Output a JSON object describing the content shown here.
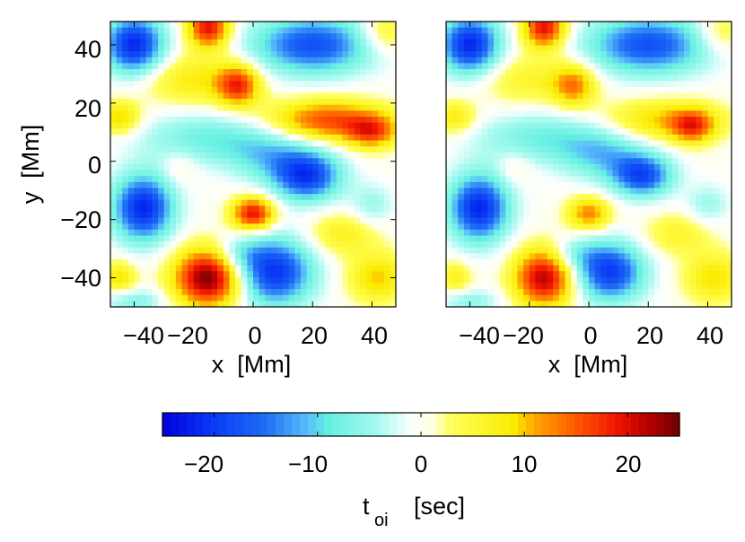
{
  "chart_data": {
    "type": "heatmap",
    "panels": [
      {
        "id": "left",
        "title": "",
        "xlabel": "x  [Mm]",
        "ylabel": "y  [Mm]",
        "xlim": [
          -48,
          48
        ],
        "ylim": [
          -50,
          48
        ],
        "xticks": [
          -40,
          -20,
          0,
          20,
          40
        ],
        "yticks": [
          40,
          20,
          0,
          -20,
          -40
        ],
        "xtick_labels": [
          "−40",
          "−20",
          "0",
          "20",
          "40"
        ],
        "ytick_labels": [
          "40",
          "20",
          "0",
          "−20",
          "−40"
        ],
        "blobs": [
          {
            "x": -40,
            "y": 40,
            "sx": 7,
            "sy": 7,
            "v": -22
          },
          {
            "x": -15,
            "y": 46,
            "sx": 5,
            "sy": 5,
            "v": 20
          },
          {
            "x": 20,
            "y": 40,
            "sx": 14,
            "sy": 7,
            "v": -18
          },
          {
            "x": 44,
            "y": 44,
            "sx": 6,
            "sy": 5,
            "v": 7
          },
          {
            "x": -20,
            "y": 28,
            "sx": 12,
            "sy": 6,
            "v": 8
          },
          {
            "x": -5,
            "y": 26,
            "sx": 5,
            "sy": 5,
            "v": 16
          },
          {
            "x": 25,
            "y": 14,
            "sx": 14,
            "sy": 5,
            "v": 16
          },
          {
            "x": 40,
            "y": 10,
            "sx": 6,
            "sy": 4,
            "v": 13
          },
          {
            "x": -45,
            "y": 15,
            "sx": 5,
            "sy": 4,
            "v": 10
          },
          {
            "x": -15,
            "y": 8,
            "sx": 16,
            "sy": 6,
            "v": -8
          },
          {
            "x": 5,
            "y": 2,
            "sx": 10,
            "sy": 6,
            "v": -8
          },
          {
            "x": -25,
            "y": -2,
            "sx": 4,
            "sy": 4,
            "v": 3
          },
          {
            "x": 18,
            "y": -5,
            "sx": 8,
            "sy": 6,
            "v": -20
          },
          {
            "x": -37,
            "y": -16,
            "sx": 7,
            "sy": 8,
            "v": -22
          },
          {
            "x": 0,
            "y": -18,
            "sx": 5,
            "sy": 4,
            "v": 20
          },
          {
            "x": 30,
            "y": -25,
            "sx": 8,
            "sy": 5,
            "v": 7
          },
          {
            "x": -15,
            "y": -40,
            "sx": 8,
            "sy": 7,
            "v": 25
          },
          {
            "x": 7,
            "y": -38,
            "sx": 9,
            "sy": 8,
            "v": -21
          },
          {
            "x": -45,
            "y": -40,
            "sx": 4,
            "sy": 4,
            "v": 9
          },
          {
            "x": -40,
            "y": -48,
            "sx": 7,
            "sy": 3,
            "v": -7
          },
          {
            "x": 42,
            "y": -40,
            "sx": 7,
            "sy": 6,
            "v": 10
          },
          {
            "x": -5,
            "y": -32,
            "sx": 6,
            "sy": 4,
            "v": -6
          },
          {
            "x": 40,
            "y": -15,
            "sx": 5,
            "sy": 5,
            "v": -5
          }
        ]
      },
      {
        "id": "right",
        "title": "",
        "xlabel": "x  [Mm]",
        "ylabel": "",
        "xlim": [
          -48,
          48
        ],
        "ylim": [
          -50,
          48
        ],
        "xticks": [
          -40,
          -20,
          0,
          20,
          40
        ],
        "yticks": [],
        "xtick_labels": [
          "−40",
          "−20",
          "0",
          "20",
          "40"
        ],
        "ytick_labels": [],
        "blobs": [
          {
            "x": -40,
            "y": 40,
            "sx": 7,
            "sy": 7,
            "v": -22
          },
          {
            "x": -15,
            "y": 46,
            "sx": 5,
            "sy": 5,
            "v": 20
          },
          {
            "x": 20,
            "y": 40,
            "sx": 14,
            "sy": 7,
            "v": -18
          },
          {
            "x": 44,
            "y": 44,
            "sx": 6,
            "sy": 5,
            "v": 6
          },
          {
            "x": -20,
            "y": 28,
            "sx": 12,
            "sy": 6,
            "v": 6
          },
          {
            "x": -5,
            "y": 26,
            "sx": 5,
            "sy": 5,
            "v": 12
          },
          {
            "x": 25,
            "y": 14,
            "sx": 14,
            "sy": 5,
            "v": 10
          },
          {
            "x": 35,
            "y": 12,
            "sx": 5,
            "sy": 4,
            "v": 13
          },
          {
            "x": -45,
            "y": 15,
            "sx": 5,
            "sy": 4,
            "v": 8
          },
          {
            "x": -15,
            "y": 8,
            "sx": 16,
            "sy": 6,
            "v": -8
          },
          {
            "x": 5,
            "y": 2,
            "sx": 10,
            "sy": 6,
            "v": -9
          },
          {
            "x": -25,
            "y": -2,
            "sx": 4,
            "sy": 4,
            "v": 3
          },
          {
            "x": 18,
            "y": -5,
            "sx": 7,
            "sy": 5,
            "v": -18
          },
          {
            "x": -37,
            "y": -16,
            "sx": 7,
            "sy": 8,
            "v": -22
          },
          {
            "x": 0,
            "y": -18,
            "sx": 5,
            "sy": 4,
            "v": 13
          },
          {
            "x": 30,
            "y": -25,
            "sx": 8,
            "sy": 5,
            "v": 6
          },
          {
            "x": -15,
            "y": -40,
            "sx": 7,
            "sy": 7,
            "v": 22
          },
          {
            "x": 7,
            "y": -38,
            "sx": 8,
            "sy": 7,
            "v": -20
          },
          {
            "x": -45,
            "y": -40,
            "sx": 4,
            "sy": 4,
            "v": 7
          },
          {
            "x": -40,
            "y": -48,
            "sx": 7,
            "sy": 3,
            "v": -6
          },
          {
            "x": 42,
            "y": -40,
            "sx": 7,
            "sy": 6,
            "v": 9
          },
          {
            "x": -5,
            "y": -32,
            "sx": 6,
            "sy": 4,
            "v": -6
          },
          {
            "x": 40,
            "y": -15,
            "sx": 5,
            "sy": 5,
            "v": -5
          }
        ]
      }
    ],
    "colorbar": {
      "title_main": "t",
      "title_sub": "oi",
      "title_unit": "[sec]",
      "range": [
        -25,
        25
      ],
      "ticks": [
        -20,
        -10,
        0,
        10,
        20
      ],
      "tick_labels": [
        "−20",
        "−10",
        "0",
        "10",
        "20"
      ],
      "colormap": "jet-like"
    }
  }
}
